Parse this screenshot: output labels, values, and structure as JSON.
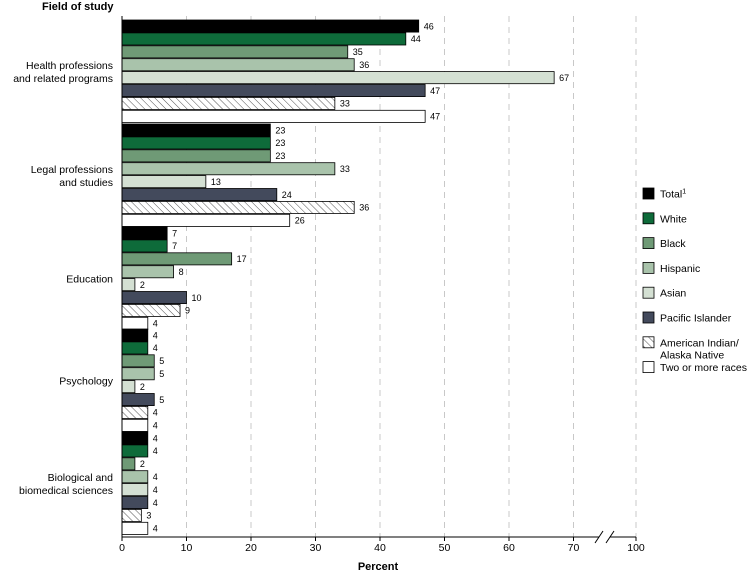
{
  "chart_data": {
    "type": "bar",
    "orientation": "horizontal",
    "title": "",
    "ylabel": "Field of study",
    "xlabel": "Percent",
    "xlim": [
      0,
      100
    ],
    "x_ticks": [
      "0",
      "10",
      "20",
      "30",
      "40",
      "50",
      "60",
      "70",
      "100"
    ],
    "axis_break": "between 70 and 100",
    "grid": "vertical dashed",
    "legend_position": "right",
    "categories": [
      [
        "Health professions",
        "and related programs"
      ],
      [
        "Legal professions",
        "and studies"
      ],
      [
        "Education"
      ],
      [
        "Psychology"
      ],
      [
        "Biological and",
        "biomedical sciences"
      ]
    ],
    "series": [
      {
        "name": "Total",
        "name_superscript": "1",
        "color": "#000000",
        "pattern": "solid",
        "values": [
          46,
          23,
          7,
          4,
          4
        ],
        "value_labels": [
          "46",
          "23",
          "7",
          "4",
          "4"
        ]
      },
      {
        "name": "White",
        "color": "#0e6b3a",
        "pattern": "solid",
        "values": [
          44,
          23,
          7,
          4,
          4
        ],
        "value_labels": [
          "44",
          "23",
          "7",
          "4",
          "4"
        ]
      },
      {
        "name": "Black",
        "color": "#6f9a76",
        "pattern": "solid",
        "values": [
          35,
          23,
          17,
          5,
          2
        ],
        "value_labels": [
          "35",
          "23",
          "17",
          "5",
          "2"
        ]
      },
      {
        "name": "Hispanic",
        "color": "#a9c3ab",
        "pattern": "solid",
        "values": [
          36,
          33,
          8,
          5,
          4
        ],
        "value_labels": [
          "36",
          "33",
          "8",
          "5",
          "4"
        ]
      },
      {
        "name": "Asian",
        "color": "#d4e0d3",
        "pattern": "solid",
        "values": [
          67,
          13,
          2,
          2,
          4
        ],
        "value_labels": [
          "67",
          "13",
          "2",
          "2",
          "4"
        ]
      },
      {
        "name": "Pacific Islander",
        "color": "#434a5c",
        "pattern": "solid",
        "values": [
          47,
          24,
          10,
          5,
          4
        ],
        "value_labels": [
          "47",
          "24",
          "10",
          "5",
          "4"
        ]
      },
      {
        "name": "American Indian/\nAlaska Native",
        "name_lines": [
          "American Indian/",
          "Alaska Native"
        ],
        "color": "#ffffff",
        "pattern": "hatch",
        "values": [
          33,
          36,
          9,
          4,
          3
        ],
        "value_labels": [
          "33",
          "36",
          "9",
          "4",
          "3"
        ]
      },
      {
        "name": "Two or more races",
        "color": "#ffffff",
        "pattern": "solid",
        "values": [
          47,
          26,
          4,
          4,
          4
        ],
        "value_labels": [
          "47",
          "26",
          "4",
          "4",
          "4"
        ]
      }
    ]
  }
}
